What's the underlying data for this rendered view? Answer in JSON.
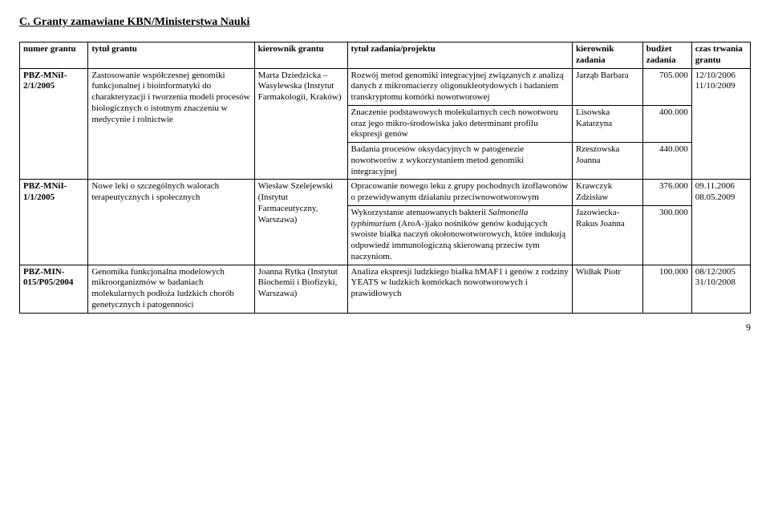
{
  "section_title": "C. Granty zamawiane KBN/Ministerstwa Nauki",
  "headers": {
    "numer": "numer grantu",
    "tytul": "tytuł grantu",
    "kierownik": "kierownik grantu",
    "zadanie": "tytuł zadania/projektu",
    "kierownik_zad": "kierownik zadania",
    "budzet": "budżet zadania",
    "czas": "czas trwania grantu"
  },
  "rows": [
    {
      "numer": "PBZ-MNiI-2/1/2005",
      "tytul": "Zastosowanie współczesnej genomiki funkcjonalnej i bioinformatyki do charakteryzacji i tworzenia modeli procesów biologicznych o istotnym znaczeniu w medycynie i rolnictwie",
      "kierownik": "Marta Dziedzicka – Wasylewska (Instytut Farmakologii, Kraków)",
      "zad1": "Rozwój metod genomiki integracyjnej związanych z analizą danych z mikromacierzy oligonukleotydowych i badaniem transkryptomu komórki nowotworowej",
      "kz1": "Jarząb Barbara",
      "b1": "705.000",
      "czas": "12/10/2006 11/10/2009",
      "zad2": "Znaczenie podstawowych molekularnych cech nowotworu oraz jego mikro-środowiska jako determinant profilu ekspresji genów",
      "kz2": "Lisowska Katarzyna",
      "b2": "400.000",
      "zad3": "Badania procesów oksydacyjnych w patogenezie nowotworów z wykorzystaniem metod genomiki integracyjnej",
      "kz3": "Rzeszowska Joanna",
      "b3": "440.000"
    },
    {
      "numer": "PBZ-MNiI-1/1/2005",
      "tytul": "Nowe leki o szczególnych walorach terapeutycznych i społecznych",
      "kierownik": "Wiesław Szelejewski (Instytut Farmaceutyczny, Warszawa)",
      "zad1": "Opracowanie nowego leku z grupy pochodnych izoflawonów o przewidywanym działaniu przeciwnowotworowym",
      "kz1": "Krawczyk Zdzisław",
      "b1": "376.000",
      "czas": "09.11.2006 08.05.2009",
      "zad2_pre": "Wykorzystanie atenuowanych bakterii ",
      "zad2_em": "Salmonella typhimurium",
      "zad2_post": " (AroA-)jako nośników genów kodujących swoiste białka naczyń okołonowotworowych, które indukują odpowiedź immunologiczną skierowaną przeciw tym naczyniom.",
      "kz2": "Jazowiecka-Rakus Joanna",
      "b2": "300.000"
    },
    {
      "numer": "PBZ-MIN-015/P05/2004",
      "tytul": "Genomika funkcjonalna modelowych mikroorganizmów w badaniach molekularnych podłoża ludzkich chorób genetycznych i patogenności",
      "kierownik": "Joanna Rytka (Instytut Biochemii i Biofizyki, Warszawa)",
      "zad1": "Analiza ekspresji ludzkiego białka hMAF1 i genów z rodziny YEATS w ludzkich komórkach nowotworowych i prawidłowych",
      "kz1": "Widłak Piotr",
      "b1": "100.000",
      "czas": "08/12/2005 31/10/2008"
    }
  ],
  "pagenum": "9"
}
